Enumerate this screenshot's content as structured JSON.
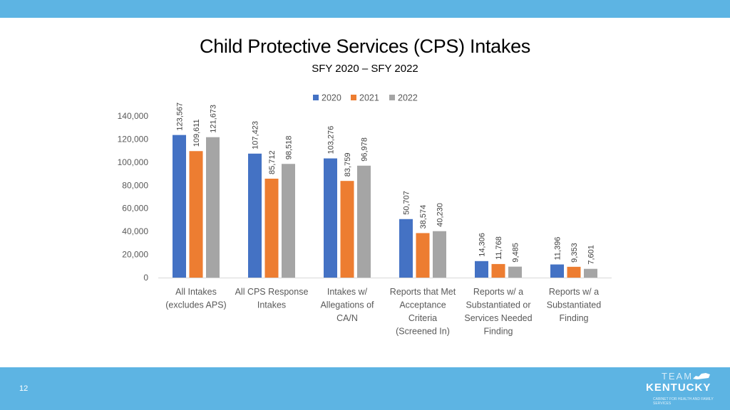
{
  "slide": {
    "title": "Child Protective Services (CPS) Intakes",
    "subtitle": "SFY 2020 – SFY 2022",
    "page_number": "12",
    "logo": {
      "team": "TEAM",
      "state": "KENTUCKY",
      "tagline": "CABINET FOR HEALTH AND FAMILY SERVICES"
    }
  },
  "colors": {
    "band": "#5db4e3",
    "series_2020": "#4472c4",
    "series_2021": "#ed7d31",
    "series_2022": "#a5a5a5",
    "grid": "#d9d9d9",
    "text": "#595959"
  },
  "chart_data": {
    "type": "bar",
    "title": "Child Protective Services (CPS) Intakes",
    "subtitle": "SFY 2020 – SFY 2022",
    "categories": [
      [
        "All Intakes",
        "(excludes APS)"
      ],
      [
        "All CPS Response",
        "Intakes"
      ],
      [
        "Intakes w/",
        "Allegations of",
        "CA/N"
      ],
      [
        "Reports that Met",
        "Acceptance",
        "Criteria",
        "(Screened In)"
      ],
      [
        "Reports w/ a",
        "Substantiated or",
        "Services Needed",
        "Finding"
      ],
      [
        "Reports w/ a",
        "Substantiated",
        "Finding"
      ]
    ],
    "series": [
      {
        "name": "2020",
        "values": [
          123567,
          107423,
          103276,
          50707,
          14306,
          11396
        ]
      },
      {
        "name": "2021",
        "values": [
          109611,
          85712,
          83759,
          38574,
          11768,
          9353
        ]
      },
      {
        "name": "2022",
        "values": [
          121673,
          98518,
          96978,
          40230,
          9485,
          7601
        ]
      }
    ],
    "ylim": [
      0,
      140000
    ],
    "yticks": [
      0,
      20000,
      40000,
      60000,
      80000,
      100000,
      120000,
      140000
    ],
    "legend_position": "top-center",
    "data_labels": "vertical-above",
    "grid": false,
    "xlabel": "",
    "ylabel": ""
  }
}
